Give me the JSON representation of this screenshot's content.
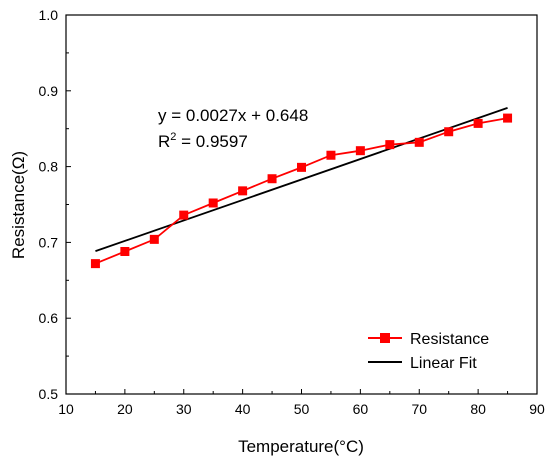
{
  "chart_data": {
    "type": "line",
    "title": "",
    "xlabel": "Temperature(°C)",
    "ylabel": "Resistance(Ω)",
    "xlim": [
      10,
      90
    ],
    "ylim": [
      0.5,
      1.0
    ],
    "x_ticks": [
      10,
      20,
      30,
      40,
      50,
      60,
      70,
      80,
      90
    ],
    "y_ticks": [
      "0.5",
      "0.6",
      "0.7",
      "0.8",
      "0.9",
      "1.0"
    ],
    "grid": false,
    "legend_position": "bottom-right",
    "series": [
      {
        "name": "Resistance",
        "color": "#ff0000",
        "marker": "square",
        "x": [
          15,
          20,
          25,
          30,
          35,
          40,
          45,
          50,
          55,
          60,
          65,
          70,
          75,
          80,
          85
        ],
        "y": [
          0.672,
          0.688,
          0.704,
          0.736,
          0.752,
          0.768,
          0.784,
          0.799,
          0.815,
          0.821,
          0.829,
          0.832,
          0.846,
          0.857,
          0.864
        ]
      },
      {
        "name": "Linear Fit",
        "color": "#000000",
        "marker": "none",
        "x": [
          15,
          85
        ],
        "y": [
          0.6885,
          0.8775
        ]
      }
    ],
    "annotations": {
      "equation": "y = 0.0027x + 0.648",
      "r2_prefix": "R",
      "r2_exp": "2",
      "r2_value": " = 0.9597"
    }
  }
}
